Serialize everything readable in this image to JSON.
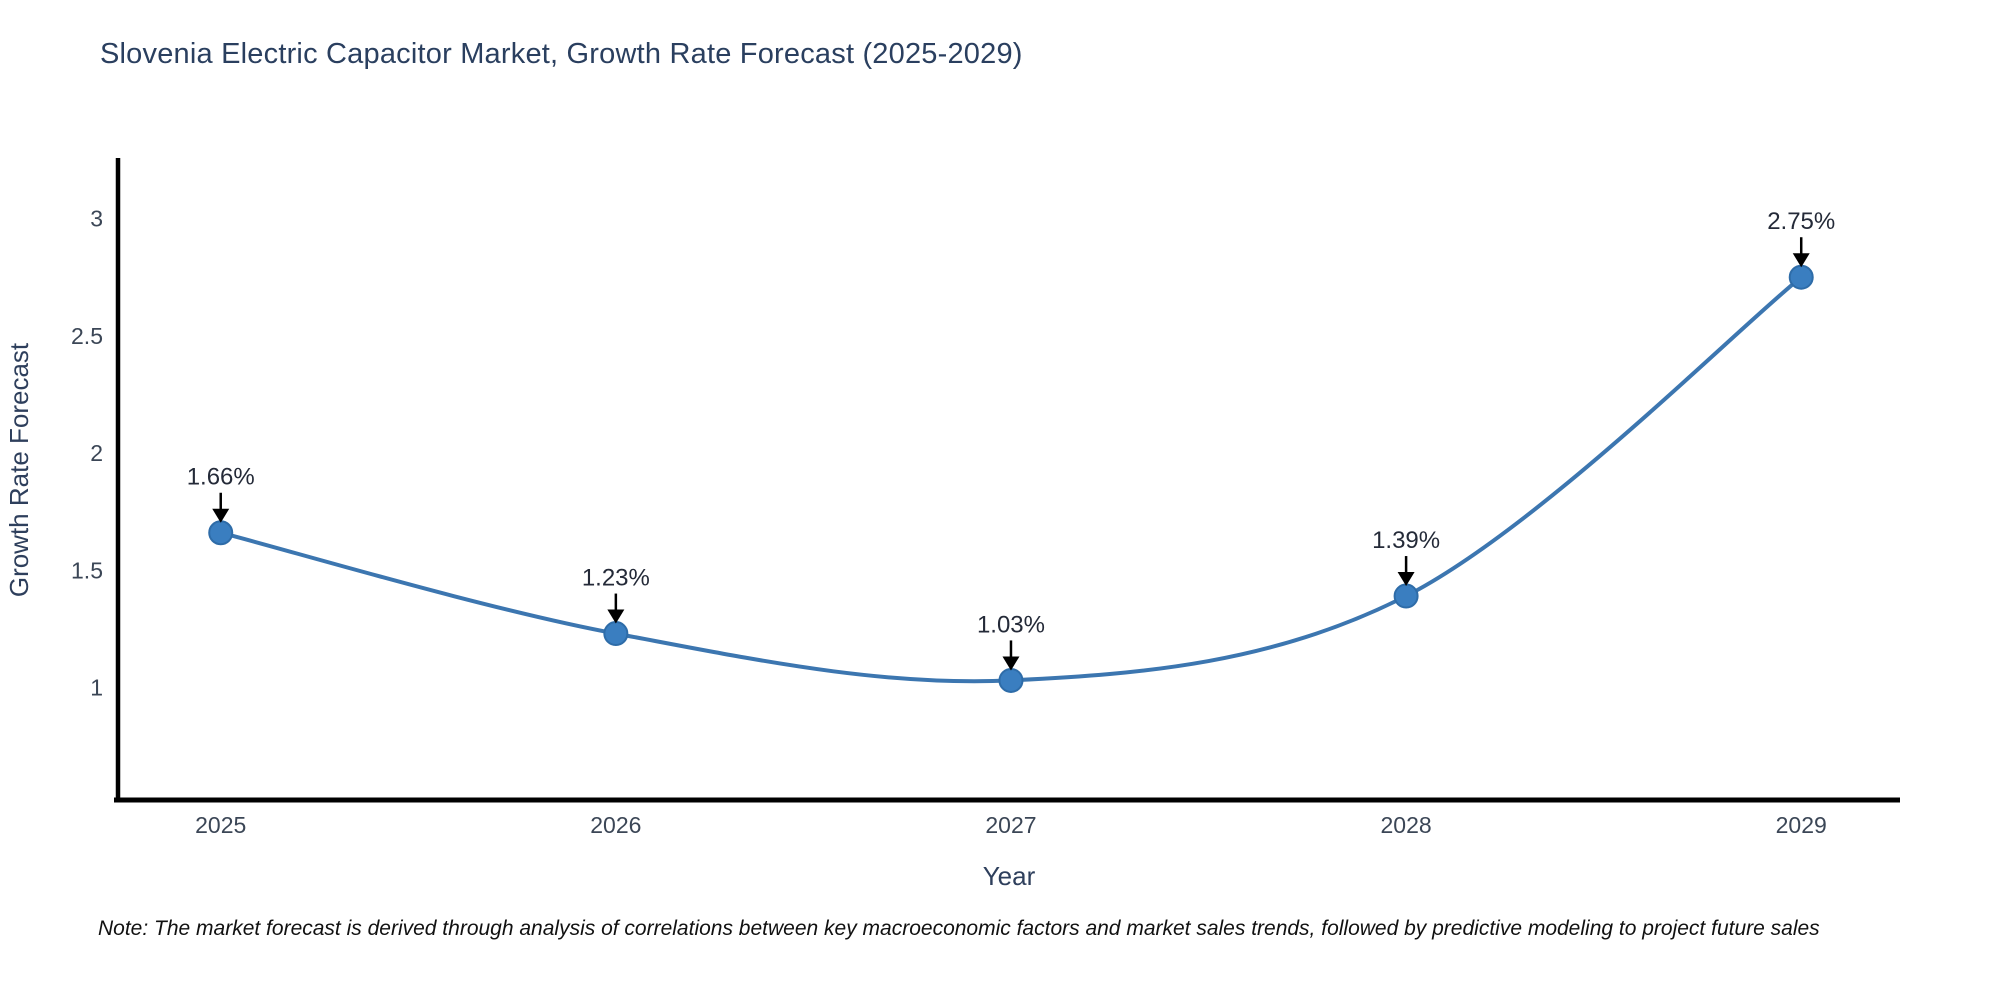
{
  "chart_data": {
    "type": "line",
    "title": "Slovenia Electric Capacitor Market, Growth Rate Forecast (2025-2029)",
    "xlabel": "Year",
    "ylabel": "Growth Rate Forecast",
    "categories": [
      2025,
      2026,
      2027,
      2028,
      2029
    ],
    "values": [
      1.66,
      1.23,
      1.03,
      1.39,
      2.75
    ],
    "point_labels": [
      "1.66%",
      "1.23%",
      "1.03%",
      "1.39%",
      "2.75%"
    ],
    "yticks": [
      1,
      1.5,
      2,
      2.5,
      3
    ],
    "ytick_labels": [
      "1",
      "1.5",
      "2",
      "2.5",
      "3"
    ],
    "xlim": [
      2024.74,
      2029.25
    ],
    "ylim": [
      0.52,
      3.25
    ],
    "grid": false,
    "legend": null,
    "line_shape": "spline",
    "line_color": "#3c76b0",
    "marker_color": "#3a7ec0",
    "marker_edge_color": "#2e6ca8",
    "axis_color": "#000000",
    "annotation_arrow_color": "#000000",
    "title_color": "#2a3f5f",
    "note": "Note: The market forecast is derived through analysis of correlations between key macroeconomic factors and market sales trends, followed by predictive modeling to project future sales"
  }
}
